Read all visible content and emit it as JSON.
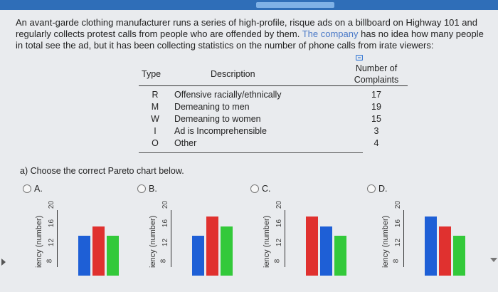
{
  "problem": {
    "text_part1": "An avant-garde clothing manufacturer runs a series of high-profile, risque ads on a billboard on Highway 101 and regularly collects protest calls from people who are offended by them. ",
    "text_blue": "The company",
    "text_part2": " has no idea how many people in total see the ad, but it has been collecting statistics on the number of phone calls from irate viewers:"
  },
  "table": {
    "headers": {
      "type": "Type",
      "description": "Description",
      "number_line1": "Number of",
      "number_line2": "Complaints"
    },
    "rows": [
      {
        "type": "R",
        "description": "Offensive racially/ethnically",
        "number": "17"
      },
      {
        "type": "M",
        "description": "Demeaning to men",
        "number": "19"
      },
      {
        "type": "W",
        "description": "Demeaning to women",
        "number": "15"
      },
      {
        "type": "I",
        "description": "Ad is Incomprehensible",
        "number": "3"
      },
      {
        "type": "O",
        "description": "Other",
        "number": "4"
      }
    ]
  },
  "question": "a) Choose the correct Pareto chart below.",
  "options": [
    {
      "label": "A.",
      "ylabel": "iency (number)",
      "ticks": [
        "20",
        "16",
        "12",
        "8"
      ],
      "bars": [
        {
          "color": "blue",
          "value": 15
        },
        {
          "color": "red",
          "value": 17
        },
        {
          "color": "green",
          "value": 15
        }
      ]
    },
    {
      "label": "B.",
      "ylabel": "iency (number)",
      "ticks": [
        "20",
        "16",
        "12",
        "8"
      ],
      "bars": [
        {
          "color": "blue",
          "value": 15
        },
        {
          "color": "red",
          "value": 19
        },
        {
          "color": "green",
          "value": 17
        }
      ]
    },
    {
      "label": "C.",
      "ylabel": "iency (number)",
      "ticks": [
        "20",
        "16",
        "12",
        "8"
      ],
      "bars": [
        {
          "color": "red",
          "value": 19
        },
        {
          "color": "blue",
          "value": 17
        },
        {
          "color": "green",
          "value": 15
        }
      ]
    },
    {
      "label": "D.",
      "ylabel": "iency (number)",
      "ticks": [
        "20",
        "16",
        "12",
        "8"
      ],
      "bars": [
        {
          "color": "blue",
          "value": 19
        },
        {
          "color": "red",
          "value": 17
        },
        {
          "color": "green",
          "value": 15
        }
      ]
    }
  ],
  "colors": {
    "topbar": "#2f6eb8",
    "blue_bar": "#1e5fd6",
    "red_bar": "#e0312f",
    "green_bar": "#33c93a"
  }
}
